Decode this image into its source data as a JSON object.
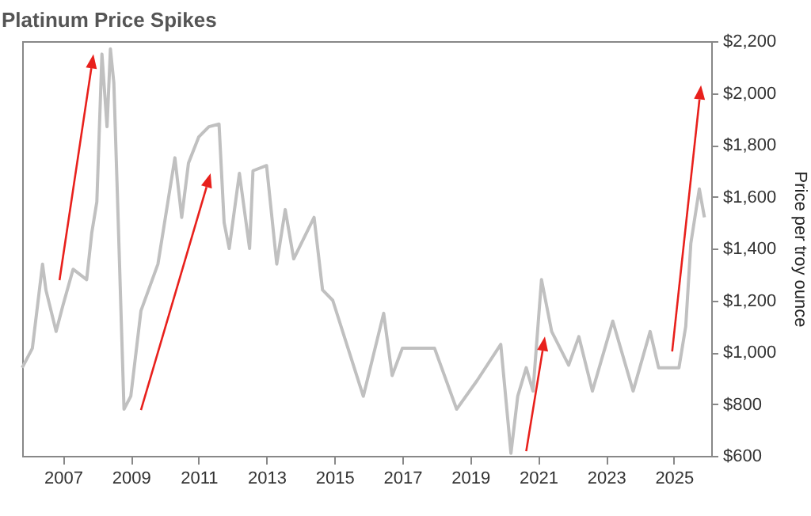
{
  "chart_data": {
    "type": "line",
    "title": "Platinum Price Spikes",
    "ylabel": "Price per troy ounce",
    "x": [
      2005.8,
      2006.1,
      2006.4,
      2006.5,
      2006.8,
      2007.0,
      2007.3,
      2007.7,
      2007.85,
      2008.0,
      2008.15,
      2008.3,
      2008.4,
      2008.5,
      2008.6,
      2008.8,
      2009.0,
      2009.3,
      2009.8,
      2010.3,
      2010.5,
      2010.7,
      2011.0,
      2011.3,
      2011.6,
      2011.75,
      2011.9,
      2012.2,
      2012.5,
      2012.6,
      2013.0,
      2013.3,
      2013.55,
      2013.8,
      2014.4,
      2014.65,
      2014.95,
      2015.4,
      2015.85,
      2016.45,
      2016.7,
      2017.0,
      2017.95,
      2018.6,
      2019.2,
      2019.9,
      2020.2,
      2020.4,
      2020.65,
      2020.85,
      2021.1,
      2021.4,
      2021.9,
      2022.2,
      2022.6,
      2023.2,
      2023.8,
      2024.3,
      2024.55,
      2025.15,
      2025.35,
      2025.5,
      2025.75,
      2025.9
    ],
    "series": [
      {
        "color": "#c0c0c0",
        "values": [
          940,
          1015,
          1340,
          1240,
          1080,
          1180,
          1320,
          1280,
          1460,
          1580,
          2150,
          1870,
          2170,
          2040,
          1630,
          780,
          830,
          1160,
          1340,
          1750,
          1520,
          1730,
          1830,
          1870,
          1880,
          1500,
          1400,
          1690,
          1400,
          1700,
          1720,
          1340,
          1550,
          1360,
          1520,
          1240,
          1200,
          1015,
          830,
          1150,
          910,
          1015,
          1015,
          780,
          890,
          1030,
          610,
          830,
          940,
          850,
          1280,
          1080,
          950,
          1060,
          850,
          1120,
          850,
          1080,
          940,
          940,
          1100,
          1420,
          1630,
          1520
        ]
      }
    ],
    "xlim": [
      2005.8,
      2026.1
    ],
    "xticks": [
      2007,
      2009,
      2011,
      2013,
      2015,
      2017,
      2019,
      2021,
      2023,
      2025
    ],
    "ylim": [
      600,
      2200
    ],
    "yticks": [
      {
        "value": 600,
        "label": "$600"
      },
      {
        "value": 800,
        "label": "$800"
      },
      {
        "value": 1000,
        "label": "$1,000"
      },
      {
        "value": 1200,
        "label": "$1,200"
      },
      {
        "value": 1400,
        "label": "$1,400"
      },
      {
        "value": 1600,
        "label": "$1,600"
      },
      {
        "value": 1800,
        "label": "$1,800"
      },
      {
        "value": 2000,
        "label": "$2,000"
      },
      {
        "value": 2200,
        "label": "$2,200"
      }
    ],
    "grid": false,
    "line_style": "solid",
    "marker": "none"
  }
}
